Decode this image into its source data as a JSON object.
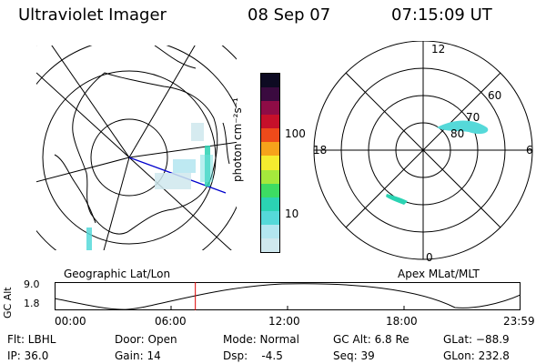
{
  "header": {
    "instrument": "Ultraviolet Imager",
    "date": "08 Sep 07",
    "time": "07:15:09 UT"
  },
  "colorbar": {
    "unit_label": "photon cm⁻²s⁻¹",
    "ticks": [
      "100",
      "10"
    ],
    "colors": [
      "#cfe8ee",
      "#b3e6f0",
      "#55d9d9",
      "#2bd3b3",
      "#3ddc63",
      "#a5e93c",
      "#f5ec2f",
      "#f6a31b",
      "#ee4a1a",
      "#c6102a",
      "#8e0c46",
      "#3a0a3f",
      "#0d0a22"
    ]
  },
  "left_panel": {
    "label": "Geographic Lat/Lon"
  },
  "right_panel": {
    "label": "Apex MLat/MLT",
    "mlt_labels": {
      "top": "12",
      "left": "18",
      "right": "6",
      "bottom": "0"
    },
    "mlat_labels": [
      "60",
      "70",
      "80"
    ]
  },
  "altitude_plot": {
    "ylabel": "GC Alt",
    "yticks": [
      "9.0",
      "1.8"
    ],
    "xticks": [
      "00:00",
      "06:00",
      "12:00",
      "18:00",
      "23:59"
    ],
    "current_marker_hours": 7.25
  },
  "status": {
    "filter": "Flt: LBHL",
    "ip": "IP: 36.0",
    "door": "Door: Open",
    "gain": "Gain: 14",
    "mode": "Mode: Normal",
    "dsp": "Dsp:    -4.5",
    "gc_alt": "GC Alt: 6.8 Re",
    "seq": "Seq: 39",
    "glat": "GLat: −88.9",
    "glon": "GLon: 232.8"
  }
}
